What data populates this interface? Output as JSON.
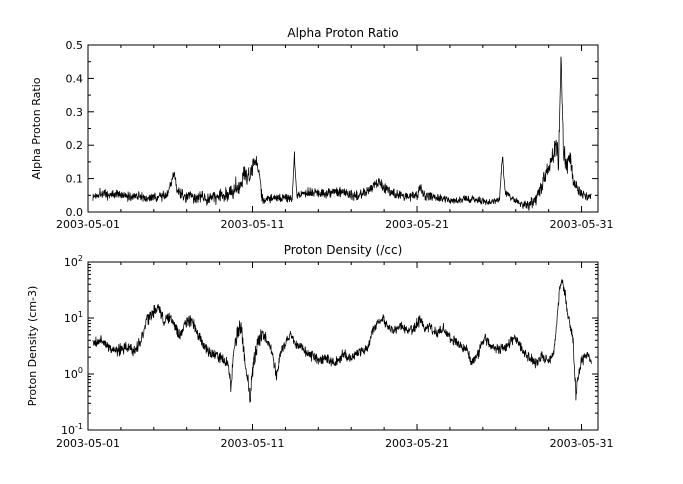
{
  "page": {
    "background": "#ffffff",
    "foreground": "#000000"
  },
  "chart_data": [
    {
      "type": "line",
      "title": "Alpha Proton Ratio",
      "ylabel": "Alpha Proton Ratio",
      "xlabel": "",
      "legend": null,
      "grid": false,
      "line_color": "#000000",
      "x_tick_labels": [
        "2003-05-01",
        "2003-05-11",
        "2003-05-21",
        "2003-05-31"
      ],
      "x_tick_positions_days": [
        0,
        10,
        20,
        30
      ],
      "x_minor_tick_step_days": 2,
      "x_range_days": [
        0,
        31
      ],
      "y_scale": "linear",
      "y_range": [
        0.0,
        0.5
      ],
      "y_ticks": [
        0.0,
        0.1,
        0.2,
        0.3,
        0.4,
        0.5
      ],
      "y_tick_labels": [
        "0.0",
        "0.1",
        "0.2",
        "0.3",
        "0.4",
        "0.5"
      ],
      "y_minor_tick_step": 0.05,
      "series": [
        {
          "name": "alpha_proton_ratio",
          "keypoints_day_value": [
            [
              0.3,
              0.045
            ],
            [
              0.8,
              0.06
            ],
            [
              1.2,
              0.05
            ],
            [
              1.8,
              0.055
            ],
            [
              2.3,
              0.045
            ],
            [
              3.0,
              0.05
            ],
            [
              3.6,
              0.04
            ],
            [
              4.2,
              0.045
            ],
            [
              4.8,
              0.05
            ],
            [
              5.1,
              0.09
            ],
            [
              5.25,
              0.12
            ],
            [
              5.4,
              0.07
            ],
            [
              5.7,
              0.05
            ],
            [
              6.2,
              0.045
            ],
            [
              7.0,
              0.04
            ],
            [
              7.8,
              0.045
            ],
            [
              8.4,
              0.05
            ],
            [
              8.8,
              0.06
            ],
            [
              9.0,
              0.09
            ],
            [
              9.2,
              0.07
            ],
            [
              9.5,
              0.12
            ],
            [
              9.8,
              0.1
            ],
            [
              10.0,
              0.14
            ],
            [
              10.2,
              0.165
            ],
            [
              10.35,
              0.13
            ],
            [
              10.5,
              0.06
            ],
            [
              10.7,
              0.035
            ],
            [
              11.2,
              0.04
            ],
            [
              11.8,
              0.045
            ],
            [
              12.4,
              0.04
            ],
            [
              12.55,
              0.17
            ],
            [
              12.7,
              0.05
            ],
            [
              13.2,
              0.06
            ],
            [
              13.8,
              0.06
            ],
            [
              14.5,
              0.055
            ],
            [
              15.2,
              0.06
            ],
            [
              15.8,
              0.055
            ],
            [
              16.4,
              0.05
            ],
            [
              16.9,
              0.06
            ],
            [
              17.4,
              0.08
            ],
            [
              17.7,
              0.09
            ],
            [
              18.0,
              0.075
            ],
            [
              18.4,
              0.06
            ],
            [
              18.9,
              0.05
            ],
            [
              19.5,
              0.045
            ],
            [
              20.0,
              0.05
            ],
            [
              20.2,
              0.075
            ],
            [
              20.4,
              0.05
            ],
            [
              21.0,
              0.045
            ],
            [
              21.6,
              0.04
            ],
            [
              22.3,
              0.035
            ],
            [
              23.0,
              0.04
            ],
            [
              23.8,
              0.035
            ],
            [
              24.5,
              0.03
            ],
            [
              25.0,
              0.035
            ],
            [
              25.2,
              0.17
            ],
            [
              25.35,
              0.06
            ],
            [
              25.8,
              0.04
            ],
            [
              26.3,
              0.025
            ],
            [
              26.8,
              0.02
            ],
            [
              27.2,
              0.04
            ],
            [
              27.6,
              0.08
            ],
            [
              27.9,
              0.12
            ],
            [
              28.2,
              0.16
            ],
            [
              28.45,
              0.21
            ],
            [
              28.6,
              0.15
            ],
            [
              28.75,
              0.46
            ],
            [
              28.9,
              0.18
            ],
            [
              29.1,
              0.14
            ],
            [
              29.3,
              0.16
            ],
            [
              29.5,
              0.1
            ],
            [
              29.8,
              0.07
            ],
            [
              30.1,
              0.05
            ],
            [
              30.4,
              0.045
            ],
            [
              30.6,
              0.05
            ]
          ],
          "noise_amplitude_day_amp": [
            [
              0,
              0.012
            ],
            [
              5,
              0.012
            ],
            [
              9,
              0.02
            ],
            [
              10.4,
              0.025
            ],
            [
              10.7,
              0.01
            ],
            [
              12,
              0.01
            ],
            [
              14,
              0.012
            ],
            [
              18,
              0.014
            ],
            [
              22,
              0.009
            ],
            [
              26,
              0.008
            ],
            [
              27.5,
              0.02
            ],
            [
              29,
              0.03
            ],
            [
              30,
              0.012
            ],
            [
              31,
              0.01
            ]
          ]
        }
      ],
      "render": {
        "samples": 1700,
        "seed": 1337
      }
    },
    {
      "type": "line",
      "title": "Proton Density (/cc)",
      "ylabel": "Proton Density (cm-3)",
      "xlabel": "",
      "legend": null,
      "grid": false,
      "line_color": "#000000",
      "x_tick_labels": [
        "2003-05-01",
        "2003-05-11",
        "2003-05-21",
        "2003-05-31"
      ],
      "x_tick_positions_days": [
        0,
        10,
        20,
        30
      ],
      "x_minor_tick_step_days": 2,
      "x_range_days": [
        0,
        31
      ],
      "y_scale": "log",
      "y_range": [
        0.1,
        100
      ],
      "y_ticks": [
        0.1,
        1,
        10,
        100
      ],
      "y_tick_labels": [
        "10^-1",
        "10^0",
        "10^1",
        "10^2"
      ],
      "series": [
        {
          "name": "proton_density",
          "keypoints_day_value": [
            [
              0.3,
              3.5
            ],
            [
              0.8,
              4.0
            ],
            [
              1.3,
              3.0
            ],
            [
              1.8,
              2.6
            ],
            [
              2.3,
              3.0
            ],
            [
              2.8,
              2.5
            ],
            [
              3.2,
              4.0
            ],
            [
              3.6,
              9.0
            ],
            [
              4.0,
              13.0
            ],
            [
              4.3,
              15.0
            ],
            [
              4.6,
              9.0
            ],
            [
              5.0,
              11.0
            ],
            [
              5.3,
              7.0
            ],
            [
              5.6,
              4.5
            ],
            [
              5.9,
              8.0
            ],
            [
              6.3,
              9.0
            ],
            [
              6.7,
              5.0
            ],
            [
              7.1,
              3.0
            ],
            [
              7.6,
              2.2
            ],
            [
              8.1,
              2.0
            ],
            [
              8.5,
              1.5
            ],
            [
              8.7,
              0.55
            ],
            [
              8.85,
              2.5
            ],
            [
              9.1,
              5.5
            ],
            [
              9.3,
              7.0
            ],
            [
              9.5,
              2.0
            ],
            [
              9.7,
              0.9
            ],
            [
              9.85,
              0.35
            ],
            [
              10.0,
              1.2
            ],
            [
              10.3,
              3.5
            ],
            [
              10.6,
              5.5
            ],
            [
              10.9,
              4.0
            ],
            [
              11.2,
              2.5
            ],
            [
              11.45,
              0.95
            ],
            [
              11.7,
              2.5
            ],
            [
              12.0,
              3.5
            ],
            [
              12.3,
              5.5
            ],
            [
              12.6,
              3.5
            ],
            [
              13.0,
              3.0
            ],
            [
              13.5,
              2.2
            ],
            [
              14.0,
              1.8
            ],
            [
              14.5,
              2.0
            ],
            [
              15.0,
              1.5
            ],
            [
              15.5,
              2.2
            ],
            [
              16.0,
              2.0
            ],
            [
              16.5,
              2.5
            ],
            [
              17.0,
              3.0
            ],
            [
              17.3,
              6.0
            ],
            [
              17.6,
              8.5
            ],
            [
              17.9,
              9.5
            ],
            [
              18.2,
              7.0
            ],
            [
              18.6,
              6.0
            ],
            [
              19.0,
              7.5
            ],
            [
              19.4,
              5.5
            ],
            [
              19.8,
              6.5
            ],
            [
              20.2,
              9.5
            ],
            [
              20.5,
              6.0
            ],
            [
              20.8,
              7.0
            ],
            [
              21.2,
              5.0
            ],
            [
              21.6,
              6.5
            ],
            [
              22.0,
              4.5
            ],
            [
              22.4,
              3.5
            ],
            [
              23.0,
              2.8
            ],
            [
              23.3,
              1.6
            ],
            [
              23.7,
              2.2
            ],
            [
              24.1,
              4.5
            ],
            [
              24.5,
              3.0
            ],
            [
              25.0,
              2.8
            ],
            [
              25.5,
              3.2
            ],
            [
              26.0,
              4.5
            ],
            [
              26.4,
              2.8
            ],
            [
              26.8,
              2.0
            ],
            [
              27.2,
              1.6
            ],
            [
              27.6,
              2.0
            ],
            [
              28.0,
              1.7
            ],
            [
              28.3,
              2.5
            ],
            [
              28.5,
              8.0
            ],
            [
              28.65,
              30
            ],
            [
              28.8,
              50
            ],
            [
              29.0,
              28
            ],
            [
              29.15,
              12
            ],
            [
              29.35,
              6.0
            ],
            [
              29.5,
              3.5
            ],
            [
              29.65,
              0.45
            ],
            [
              29.8,
              1.0
            ],
            [
              30.0,
              1.6
            ],
            [
              30.3,
              2.2
            ],
            [
              30.6,
              1.7
            ]
          ],
          "noise_amplitude_day_amp": [
            [
              0,
              0.07
            ],
            [
              4,
              0.09
            ],
            [
              8,
              0.08
            ],
            [
              9.8,
              0.12
            ],
            [
              12,
              0.07
            ],
            [
              15,
              0.08
            ],
            [
              18,
              0.07
            ],
            [
              21,
              0.08
            ],
            [
              24,
              0.07
            ],
            [
              27,
              0.08
            ],
            [
              28.8,
              0.06
            ],
            [
              29.7,
              0.1
            ],
            [
              30.6,
              0.07
            ]
          ]
        }
      ],
      "render": {
        "samples": 1700,
        "seed": 2024
      }
    }
  ]
}
